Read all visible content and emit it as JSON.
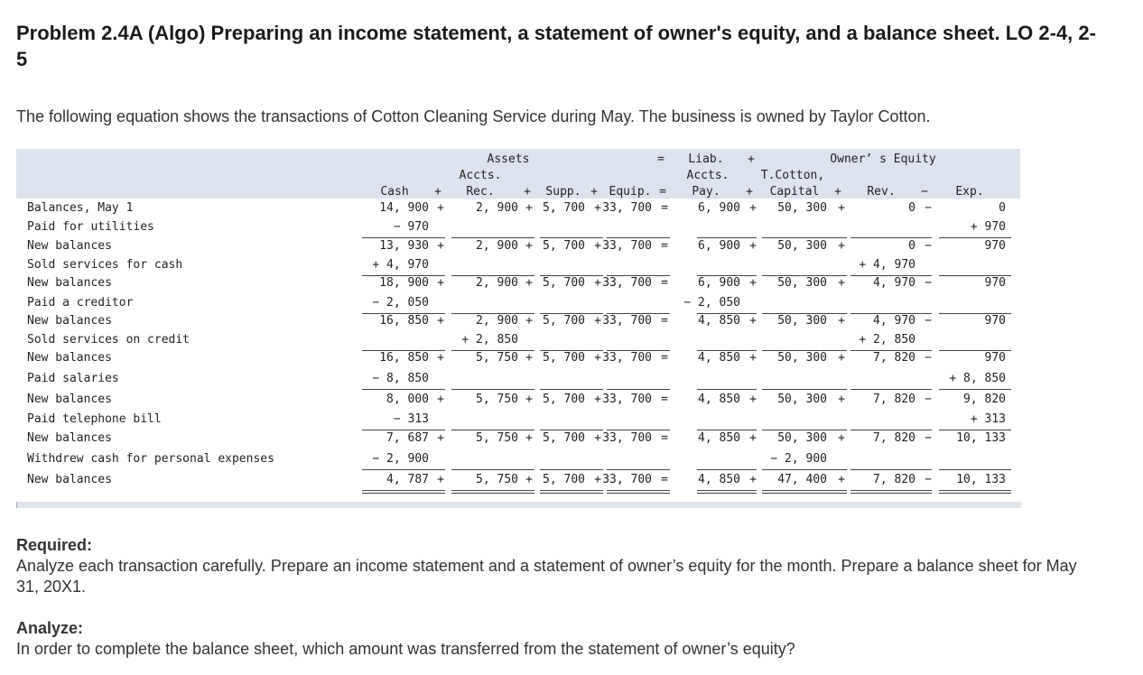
{
  "problem": {
    "title": "Problem 2.4A (Algo) Preparing an income statement, a statement of owner's equity, and a balance sheet. LO 2-4, 2-5",
    "intro": "The following equation shows the transactions of Cotton Cleaning Service during May. The business is owned by Taylor Cotton."
  },
  "equation": {
    "header": {
      "assets": "Assets",
      "eq": "=",
      "liab_group": "Liab.",
      "plus": "+",
      "owners_equity": "Owner’ s Equity",
      "accts_1": "Accts.",
      "accts_2": "Accts.",
      "tcotton": "T.Cotton,",
      "cash": "Cash",
      "plus1": "+",
      "rec": "Rec.",
      "plus2": "+",
      "supp": "Supp.",
      "plus3": "+",
      "equip": "Equip.",
      "eq2": "=",
      "pay": "Pay.",
      "plus4": "+",
      "capital": "Capital",
      "plus5": "+",
      "rev": "Rev.",
      "minus": "−",
      "exp": "Exp."
    },
    "rows": [
      {
        "label": "Balances, May 1",
        "cash": "14, 900",
        "cop1": "+",
        "rec": "2, 900",
        "rop": "+",
        "supp": "5, 700",
        "sop": "+",
        "equip": "33, 700",
        "eop": "=",
        "pay": "6, 900",
        "pop": "+",
        "cap": "50, 300",
        "capop": "+",
        "rev": "0",
        "revop": "−",
        "exp": "0"
      },
      {
        "label": "Paid for utilities",
        "cash": "− 970",
        "cop1": "",
        "rec": "",
        "rop": "",
        "supp": "",
        "sop": "",
        "equip": "",
        "eop": "",
        "pay": "",
        "pop": "",
        "cap": "",
        "capop": "",
        "rev": "",
        "revop": "",
        "exp": "+ 970"
      },
      {
        "label": "New balances",
        "cash": "13, 930",
        "cop1": "+",
        "rec": "2, 900",
        "rop": "+",
        "supp": "5, 700",
        "sop": "+",
        "equip": "33, 700",
        "eop": "=",
        "pay": "6, 900",
        "pop": "+",
        "cap": "50, 300",
        "capop": "+",
        "rev": "0",
        "revop": "−",
        "exp": "970"
      },
      {
        "label": "Sold services for cash",
        "cash": "+ 4, 970",
        "cop1": "",
        "rec": "",
        "rop": "",
        "supp": "",
        "sop": "",
        "equip": "",
        "eop": "",
        "pay": "",
        "pop": "",
        "cap": "",
        "capop": "",
        "rev": "+ 4, 970",
        "revop": "",
        "exp": ""
      },
      {
        "label": "New balances",
        "cash": "18, 900",
        "cop1": "+",
        "rec": "2, 900",
        "rop": "+",
        "supp": "5, 700",
        "sop": "+",
        "equip": "33, 700",
        "eop": "=",
        "pay": "6, 900",
        "pop": "+",
        "cap": "50, 300",
        "capop": "+",
        "rev": "4, 970",
        "revop": "−",
        "exp": "970"
      },
      {
        "label": "Paid a creditor",
        "cash": "− 2, 050",
        "cop1": "",
        "rec": "",
        "rop": "",
        "supp": "",
        "sop": "",
        "equip": "",
        "eop": "",
        "pay": "− 2, 050",
        "pop": "",
        "cap": "",
        "capop": "",
        "rev": "",
        "revop": "",
        "exp": ""
      },
      {
        "label": "New balances",
        "cash": "16, 850",
        "cop1": "+",
        "rec": "2, 900",
        "rop": "+",
        "supp": "5, 700",
        "sop": "+",
        "equip": "33, 700",
        "eop": "=",
        "pay": "4, 850",
        "pop": "+",
        "cap": "50, 300",
        "capop": "+",
        "rev": "4, 970",
        "revop": "−",
        "exp": "970"
      },
      {
        "label": "Sold services on credit",
        "cash": "",
        "cop1": "",
        "rec": "+ 2, 850",
        "rop": "",
        "supp": "",
        "sop": "",
        "equip": "",
        "eop": "",
        "pay": "",
        "pop": "",
        "cap": "",
        "capop": "",
        "rev": "+ 2, 850",
        "revop": "",
        "exp": ""
      },
      {
        "label": "New balances",
        "cash": "16, 850",
        "cop1": "+",
        "rec": "5, 750",
        "rop": "+",
        "supp": "5, 700",
        "sop": "+",
        "equip": "33, 700",
        "eop": "=",
        "pay": "4, 850",
        "pop": "+",
        "cap": "50, 300",
        "capop": "+",
        "rev": "7, 820",
        "revop": "−",
        "exp": "970"
      },
      {
        "label": "Paid salaries",
        "cash": "− 8, 850",
        "cop1": "",
        "rec": "",
        "rop": "",
        "supp": "",
        "sop": "",
        "equip": "",
        "eop": "",
        "pay": "",
        "pop": "",
        "cap": "",
        "capop": "",
        "rev": "",
        "revop": "",
        "exp": "+ 8, 850"
      },
      {
        "label": "New balances",
        "cash": "8, 000",
        "cop1": "+",
        "rec": "5, 750",
        "rop": "+",
        "supp": "5, 700",
        "sop": "+",
        "equip": "33, 700",
        "eop": "=",
        "pay": "4, 850",
        "pop": "+",
        "cap": "50, 300",
        "capop": "+",
        "rev": "7, 820",
        "revop": "−",
        "exp": "9, 820"
      },
      {
        "label": "Paid telephone bill",
        "cash": "− 313",
        "cop1": "",
        "rec": "",
        "rop": "",
        "supp": "",
        "sop": "",
        "equip": "",
        "eop": "",
        "pay": "",
        "pop": "",
        "cap": "",
        "capop": "",
        "rev": "",
        "revop": "",
        "exp": "+ 313"
      },
      {
        "label": "New balances",
        "cash": "7, 687",
        "cop1": "+",
        "rec": "5, 750",
        "rop": "+",
        "supp": "5, 700",
        "sop": "+",
        "equip": "33, 700",
        "eop": "=",
        "pay": "4, 850",
        "pop": "+",
        "cap": "50, 300",
        "capop": "+",
        "rev": "7, 820",
        "revop": "−",
        "exp": "10, 133"
      },
      {
        "label": "Withdrew cash for personal expenses",
        "cash": "− 2, 900",
        "cop1": "",
        "rec": "",
        "rop": "",
        "supp": "",
        "sop": "",
        "equip": "",
        "eop": "",
        "pay": "",
        "pop": "",
        "cap": "− 2, 900",
        "capop": "",
        "rev": "",
        "revop": "",
        "exp": ""
      },
      {
        "label": "New balances",
        "cash": "4, 787",
        "cop1": "+",
        "rec": "5, 750",
        "rop": "+",
        "supp": "5, 700",
        "sop": "+",
        "equip": "33, 700",
        "eop": "=",
        "pay": "4, 850",
        "pop": "+",
        "cap": "47, 400",
        "capop": "+",
        "rev": "7, 820",
        "revop": "−",
        "exp": "10, 133"
      }
    ]
  },
  "required": {
    "label": "Required:",
    "text": "Analyze each transaction carefully. Prepare an income statement and a statement of owner’s equity for the month. Prepare a balance sheet for May 31, 20X1."
  },
  "analyze": {
    "label": "Analyze:",
    "text": "In order to complete the balance sheet, which amount was transferred from the statement of owner’s equity?"
  }
}
